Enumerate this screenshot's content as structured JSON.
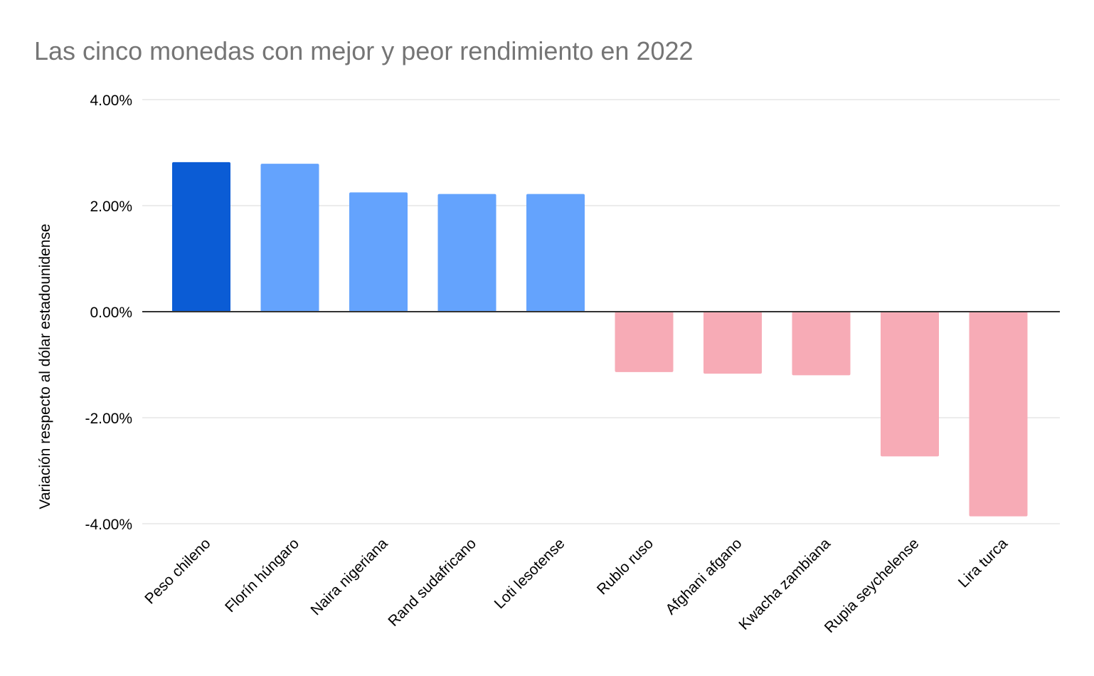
{
  "chart_data": {
    "type": "bar",
    "title": "Las cinco monedas con mejor y peor rendimiento en 2022",
    "xlabel": "",
    "ylabel": "Variación respecto al dólar estadounidense",
    "ylim": [
      -4,
      4
    ],
    "yticks": [
      4,
      2,
      0,
      -2,
      -4
    ],
    "ytick_labels": [
      "4.00%",
      "2.00%",
      "0.00%",
      "-2.00%",
      "-4.00%"
    ],
    "grid": true,
    "legend": "none",
    "categories": [
      "Peso chileno",
      "Florín húngaro",
      "Naira nigeriana",
      "Rand sudafricano",
      "Loti lesotense",
      "Rublo ruso",
      "Afghani afgano",
      "Kwacha zambiana",
      "Rupia seychelense",
      "Lira turca"
    ],
    "values": [
      2.82,
      2.79,
      2.25,
      2.22,
      2.22,
      -1.14,
      -1.17,
      -1.2,
      -2.73,
      -3.86
    ],
    "bar_colors": [
      "#0b5cd5",
      "#64a3fd",
      "#64a3fd",
      "#64a3fd",
      "#64a3fd",
      "#f7abb6",
      "#f7abb6",
      "#f7abb6",
      "#f7abb6",
      "#f7abb6"
    ],
    "colors": {
      "gridline": "#e6e6e6",
      "zero_line": "#333333",
      "title": "#757575",
      "text": "#000000"
    }
  }
}
